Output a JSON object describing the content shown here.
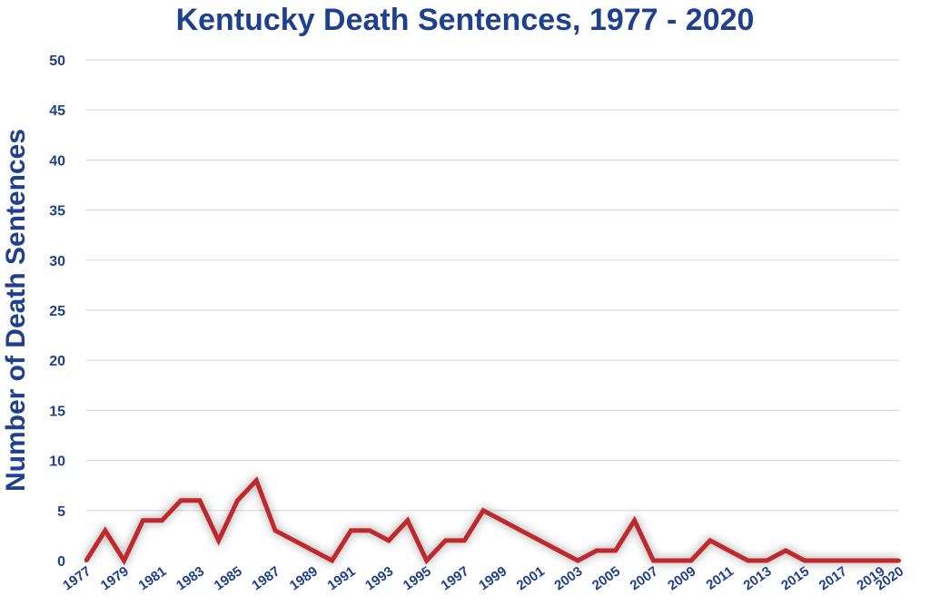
{
  "colors": {
    "text": "#1f3f8f",
    "line": "#c0282d",
    "grid": "#d9d9d9",
    "shadow": "#999999"
  },
  "chart_data": {
    "type": "line",
    "title": "Kentucky Death Sentences, 1977 - 2020",
    "xlabel": "",
    "ylabel": "Number of Death Sentences",
    "ylim": [
      0,
      50
    ],
    "yticks": [
      0,
      5,
      10,
      15,
      20,
      25,
      30,
      35,
      40,
      45,
      50
    ],
    "xlim": [
      1977,
      2020
    ],
    "xticks": [
      "1977",
      "1979",
      "1981",
      "1983",
      "1985",
      "1987",
      "1989",
      "1991",
      "1993",
      "1995",
      "1997",
      "1999",
      "2001",
      "2003",
      "2005",
      "2007",
      "2009",
      "2011",
      "2013",
      "2015",
      "2017",
      "2019",
      "2020"
    ],
    "grid": true,
    "legend": "none",
    "series": [
      {
        "x": [
          1977,
          1978,
          1979,
          1980,
          1981,
          1982,
          1983,
          1984,
          1985,
          1986,
          1987,
          1988,
          1989,
          1990,
          1991,
          1992,
          1993,
          1994,
          1995,
          1996,
          1997,
          1998,
          1999,
          2000,
          2001,
          2002,
          2003,
          2004,
          2005,
          2006,
          2007,
          2008,
          2009,
          2010,
          2011,
          2012,
          2013,
          2014,
          2015,
          2016,
          2017,
          2018,
          2019,
          2020
        ],
        "values": [
          0,
          3,
          0,
          4,
          4,
          6,
          6,
          2,
          6,
          8,
          3,
          2,
          1,
          0,
          3,
          3,
          2,
          4,
          0,
          2,
          2,
          5,
          4,
          3,
          2,
          1,
          0,
          1,
          1,
          4,
          0,
          0,
          0,
          2,
          1,
          0,
          0,
          1,
          0,
          0,
          0,
          0,
          0,
          0
        ]
      }
    ]
  }
}
